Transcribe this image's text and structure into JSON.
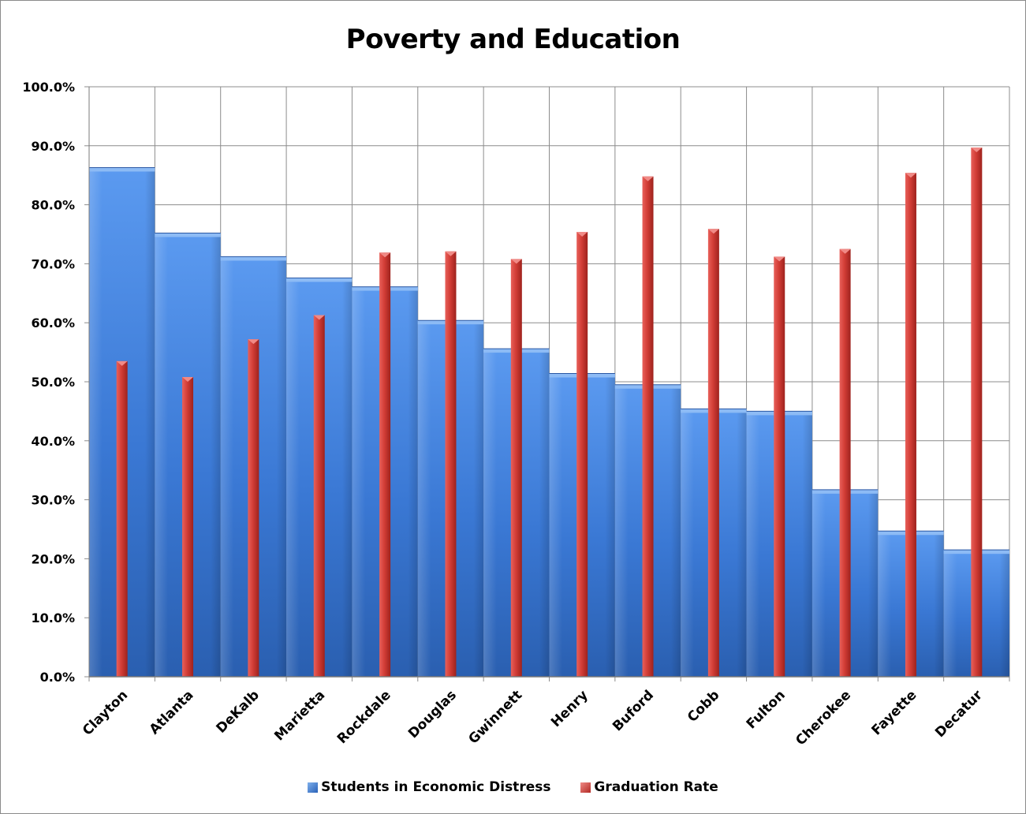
{
  "chart_data": {
    "type": "bar",
    "title": "Poverty and Education",
    "categories": [
      "Clayton",
      "Atlanta",
      "DeKalb",
      "Marietta",
      "Rockdale",
      "Douglas",
      "Gwinnett",
      "Henry",
      "Buford",
      "Cobb",
      "Fulton",
      "Cherokee",
      "Fayette",
      "Decatur"
    ],
    "series": [
      {
        "name": "Students in Economic Distress",
        "values": [
          86.3,
          75.2,
          71.2,
          67.6,
          66.1,
          60.4,
          55.6,
          51.4,
          49.5,
          45.4,
          45.0,
          31.7,
          24.7,
          21.5
        ],
        "color": "#3a78d4",
        "style": "wide-bar"
      },
      {
        "name": "Graduation Rate",
        "values": [
          53.5,
          50.8,
          57.2,
          61.3,
          71.9,
          72.1,
          70.8,
          75.4,
          84.8,
          75.9,
          71.2,
          72.5,
          85.4,
          89.7
        ],
        "color": "#c8302a",
        "style": "narrow-bar"
      }
    ],
    "ylim": [
      0,
      100
    ],
    "yticks": [
      "0.0%",
      "10.0%",
      "20.0%",
      "30.0%",
      "40.0%",
      "50.0%",
      "60.0%",
      "70.0%",
      "80.0%",
      "90.0%",
      "100.0%"
    ],
    "grid": true,
    "legend_position": "bottom"
  }
}
